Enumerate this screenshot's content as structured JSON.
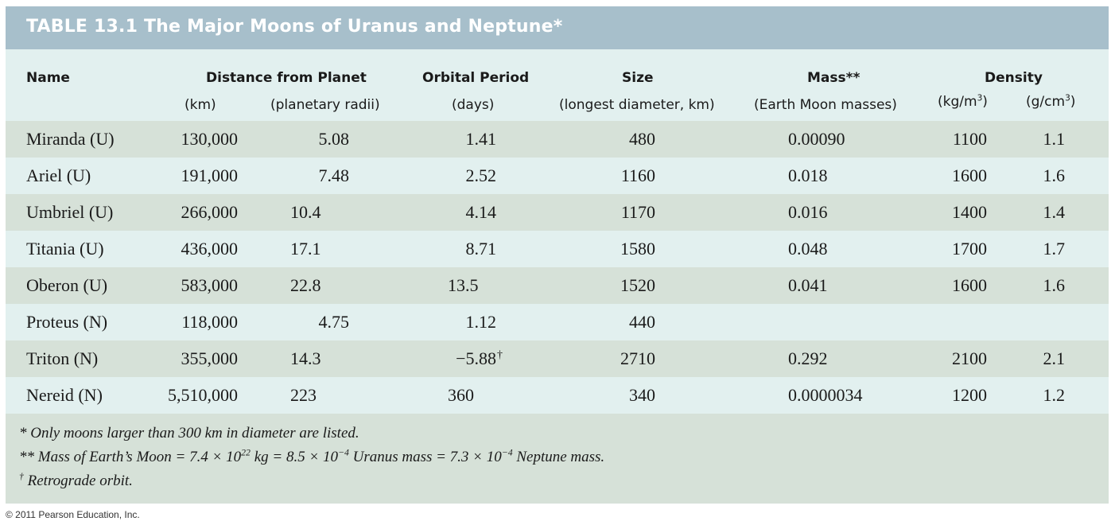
{
  "title": "TABLE 13.1  The Major Moons of Uranus and Neptune*",
  "headers": {
    "name": "Name",
    "distance": "Distance from Planet",
    "distance_km": "(km)",
    "distance_radii": "(planetary radii)",
    "period": "Orbital Period",
    "period_unit": "(days)",
    "size": "Size",
    "size_unit": "(longest diameter, km)",
    "mass": "Mass**",
    "mass_unit": "(Earth Moon masses)",
    "density": "Density",
    "density_kg_pre": "(kg/m",
    "density_kg_exp": "3",
    "density_kg_post": ")",
    "density_g_pre": "(g/cm",
    "density_g_exp": "3",
    "density_g_post": ")"
  },
  "rows": [
    {
      "name": "Miranda (U)",
      "km": "130,000",
      "radii": "5.08",
      "period": "1.41",
      "period_mark": "",
      "size": "480",
      "mass": "0.00090",
      "density_kg": "1100",
      "density_g": "1.1"
    },
    {
      "name": "Ariel (U)",
      "km": "191,000",
      "radii": "7.48",
      "period": "2.52",
      "period_mark": "",
      "size": "1160",
      "mass": "0.018",
      "density_kg": "1600",
      "density_g": "1.6"
    },
    {
      "name": "Umbriel (U)",
      "km": "266,000",
      "radii": "10.4",
      "period": "4.14",
      "period_mark": "",
      "size": "1170",
      "mass": "0.016",
      "density_kg": "1400",
      "density_g": "1.4"
    },
    {
      "name": "Titania (U)",
      "km": "436,000",
      "radii": "17.1",
      "period": "8.71",
      "period_mark": "",
      "size": "1580",
      "mass": "0.048",
      "density_kg": "1700",
      "density_g": "1.7"
    },
    {
      "name": "Oberon (U)",
      "km": "583,000",
      "radii": "22.8",
      "period": "13.5",
      "period_mark": "",
      "size": "1520",
      "mass": "0.041",
      "density_kg": "1600",
      "density_g": "1.6"
    },
    {
      "name": "Proteus (N)",
      "km": "118,000",
      "radii": "4.75",
      "period": "1.12",
      "period_mark": "",
      "size": "440",
      "mass": "",
      "density_kg": "",
      "density_g": ""
    },
    {
      "name": "Triton (N)",
      "km": "355,000",
      "radii": "14.3",
      "period": "−5.88",
      "period_mark": "†",
      "size": "2710",
      "mass": "0.292",
      "density_kg": "2100",
      "density_g": "2.1"
    },
    {
      "name": "Nereid (N)",
      "km": "5,510,000",
      "radii": "223",
      "period": "360",
      "period_mark": "",
      "size": "340",
      "mass": "0.0000034",
      "density_kg": "1200",
      "density_g": "1.2"
    }
  ],
  "notes": {
    "note1": "* Only moons larger than 300 km in diameter are listed.",
    "note2_a": "** Mass of Earth’s Moon = 7.4 × 10",
    "note2_exp1": "22",
    "note2_b": " kg = 8.5 × 10",
    "note2_exp2": "−4",
    "note2_c": " Uranus mass = 7.3 × 10",
    "note2_exp3": "−4",
    "note2_d": " Neptune mass.",
    "note3_mark": "†",
    "note3": " Retrograde orbit."
  },
  "copyright": "© 2011 Pearson Education, Inc.",
  "colors": {
    "title_bar": "#a7bfcb",
    "row_dark": "#d6e1d8",
    "row_light": "#e2f0ef"
  }
}
